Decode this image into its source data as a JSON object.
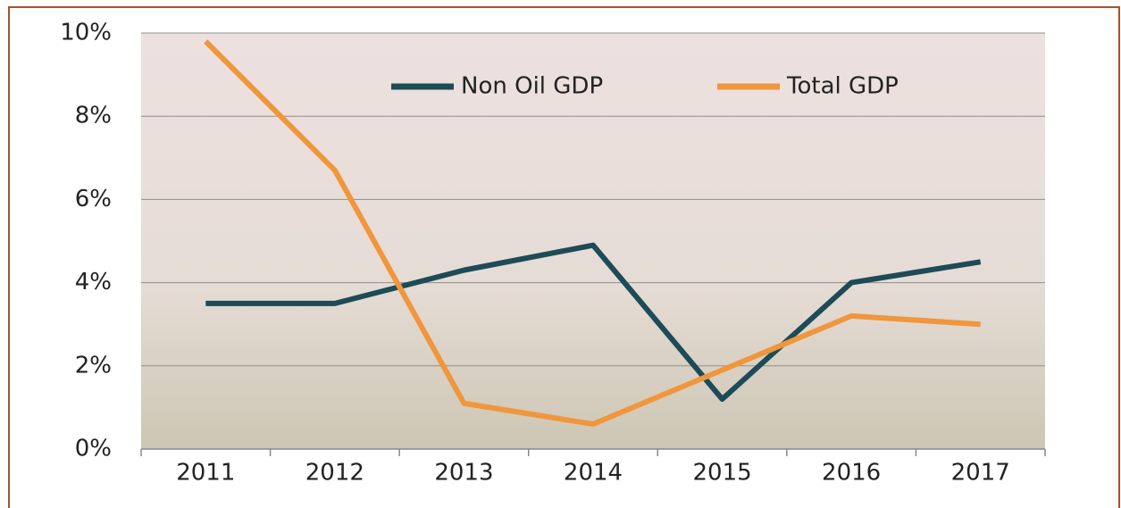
{
  "chart_data": {
    "type": "line",
    "categories": [
      "2011",
      "2012",
      "2013",
      "2014",
      "2015",
      "2016",
      "2017"
    ],
    "series": [
      {
        "name": "Non Oil GDP",
        "color": "#1d4b57",
        "values": [
          3.5,
          3.5,
          4.3,
          4.9,
          1.2,
          4.0,
          4.5
        ]
      },
      {
        "name": "Total GDP",
        "color": "#f0963c",
        "values": [
          9.8,
          6.7,
          1.1,
          0.6,
          1.9,
          3.2,
          3.0
        ]
      }
    ],
    "ylim": [
      0,
      10
    ],
    "yticks": [
      {
        "value": 0,
        "label": "0%"
      },
      {
        "value": 2,
        "label": "2%"
      },
      {
        "value": 4,
        "label": "4%"
      },
      {
        "value": 6,
        "label": "6%"
      },
      {
        "value": 8,
        "label": "8%"
      },
      {
        "value": 10,
        "label": "10%"
      }
    ],
    "grid": true,
    "legend": "upper center"
  }
}
